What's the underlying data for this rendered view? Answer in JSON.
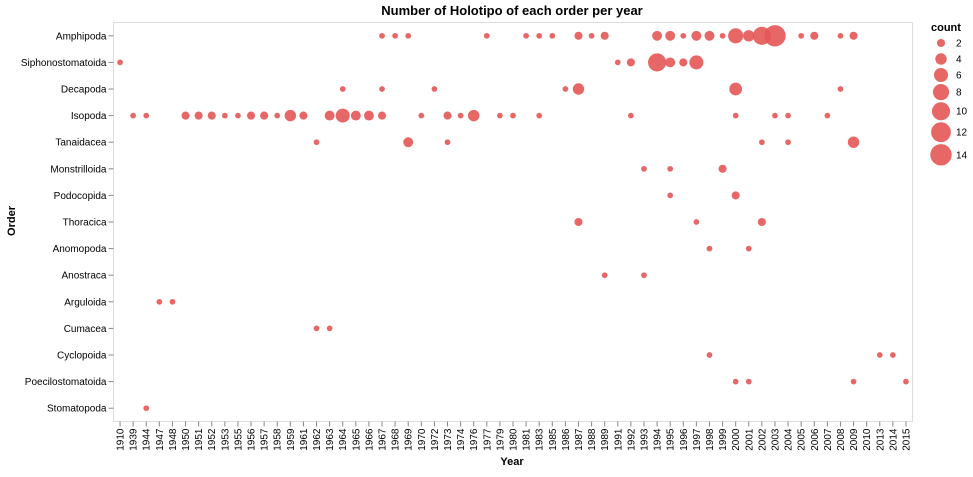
{
  "chart_data": {
    "type": "scatter",
    "title": "Number of Holotipo of each order per year",
    "xlabel": "Year",
    "ylabel": "Order",
    "x_categories": [
      "1910",
      "1939",
      "1944",
      "1947",
      "1948",
      "1950",
      "1951",
      "1952",
      "1953",
      "1955",
      "1956",
      "1957",
      "1958",
      "1959",
      "1961",
      "1962",
      "1963",
      "1964",
      "1965",
      "1966",
      "1967",
      "1968",
      "1969",
      "1970",
      "1972",
      "1973",
      "1974",
      "1976",
      "1977",
      "1979",
      "1980",
      "1981",
      "1983",
      "1985",
      "1986",
      "1987",
      "1988",
      "1989",
      "1991",
      "1992",
      "1993",
      "1994",
      "1995",
      "1996",
      "1997",
      "1998",
      "1999",
      "2000",
      "2001",
      "2002",
      "2003",
      "2004",
      "2005",
      "2006",
      "2007",
      "2008",
      "2009",
      "2010",
      "2013",
      "2014",
      "2015"
    ],
    "y_categories": [
      "Amphipoda",
      "Siphonostomatoida",
      "Decapoda",
      "Isopoda",
      "Tanaidacea",
      "Monstrilloida",
      "Podocopida",
      "Thoracica",
      "Anomopoda",
      "Anostraca",
      "Arguloida",
      "Cumacea",
      "Cyclopoida",
      "Poecilostomatoida",
      "Stomatopoda"
    ],
    "size_field": "count",
    "color": "#e45756",
    "grid": false,
    "legend": {
      "title": "count",
      "position": "right",
      "values": [
        2,
        4,
        6,
        8,
        10,
        12,
        14
      ]
    },
    "points": [
      {
        "x": "1967",
        "y": "Amphipoda",
        "count": 1
      },
      {
        "x": "1968",
        "y": "Amphipoda",
        "count": 1
      },
      {
        "x": "1969",
        "y": "Amphipoda",
        "count": 1
      },
      {
        "x": "1977",
        "y": "Amphipoda",
        "count": 1
      },
      {
        "x": "1981",
        "y": "Amphipoda",
        "count": 1
      },
      {
        "x": "1983",
        "y": "Amphipoda",
        "count": 1
      },
      {
        "x": "1985",
        "y": "Amphipoda",
        "count": 1
      },
      {
        "x": "1987",
        "y": "Amphipoda",
        "count": 2
      },
      {
        "x": "1988",
        "y": "Amphipoda",
        "count": 1
      },
      {
        "x": "1989",
        "y": "Amphipoda",
        "count": 2
      },
      {
        "x": "1994",
        "y": "Amphipoda",
        "count": 3
      },
      {
        "x": "1995",
        "y": "Amphipoda",
        "count": 3
      },
      {
        "x": "1996",
        "y": "Amphipoda",
        "count": 1
      },
      {
        "x": "1997",
        "y": "Amphipoda",
        "count": 3
      },
      {
        "x": "1998",
        "y": "Amphipoda",
        "count": 3
      },
      {
        "x": "1999",
        "y": "Amphipoda",
        "count": 1
      },
      {
        "x": "2000",
        "y": "Amphipoda",
        "count": 7
      },
      {
        "x": "2001",
        "y": "Amphipoda",
        "count": 4
      },
      {
        "x": "2002",
        "y": "Amphipoda",
        "count": 10
      },
      {
        "x": "2003",
        "y": "Amphipoda",
        "count": 14
      },
      {
        "x": "2005",
        "y": "Amphipoda",
        "count": 1
      },
      {
        "x": "2006",
        "y": "Amphipoda",
        "count": 2
      },
      {
        "x": "2008",
        "y": "Amphipoda",
        "count": 1
      },
      {
        "x": "2009",
        "y": "Amphipoda",
        "count": 2
      },
      {
        "x": "1910",
        "y": "Siphonostomatoida",
        "count": 1
      },
      {
        "x": "1991",
        "y": "Siphonostomatoida",
        "count": 1
      },
      {
        "x": "1992",
        "y": "Siphonostomatoida",
        "count": 2
      },
      {
        "x": "1994",
        "y": "Siphonostomatoida",
        "count": 10
      },
      {
        "x": "1995",
        "y": "Siphonostomatoida",
        "count": 3
      },
      {
        "x": "1996",
        "y": "Siphonostomatoida",
        "count": 2
      },
      {
        "x": "1997",
        "y": "Siphonostomatoida",
        "count": 6
      },
      {
        "x": "1964",
        "y": "Decapoda",
        "count": 1
      },
      {
        "x": "1967",
        "y": "Decapoda",
        "count": 1
      },
      {
        "x": "1972",
        "y": "Decapoda",
        "count": 1
      },
      {
        "x": "1986",
        "y": "Decapoda",
        "count": 1
      },
      {
        "x": "1987",
        "y": "Decapoda",
        "count": 4
      },
      {
        "x": "2000",
        "y": "Decapoda",
        "count": 5
      },
      {
        "x": "2008",
        "y": "Decapoda",
        "count": 1
      },
      {
        "x": "1939",
        "y": "Isopoda",
        "count": 1
      },
      {
        "x": "1944",
        "y": "Isopoda",
        "count": 1
      },
      {
        "x": "1950",
        "y": "Isopoda",
        "count": 2
      },
      {
        "x": "1951",
        "y": "Isopoda",
        "count": 2
      },
      {
        "x": "1952",
        "y": "Isopoda",
        "count": 2
      },
      {
        "x": "1953",
        "y": "Isopoda",
        "count": 1
      },
      {
        "x": "1955",
        "y": "Isopoda",
        "count": 1
      },
      {
        "x": "1956",
        "y": "Isopoda",
        "count": 2
      },
      {
        "x": "1957",
        "y": "Isopoda",
        "count": 2
      },
      {
        "x": "1958",
        "y": "Isopoda",
        "count": 1
      },
      {
        "x": "1959",
        "y": "Isopoda",
        "count": 4
      },
      {
        "x": "1961",
        "y": "Isopoda",
        "count": 2
      },
      {
        "x": "1963",
        "y": "Isopoda",
        "count": 3
      },
      {
        "x": "1964",
        "y": "Isopoda",
        "count": 6
      },
      {
        "x": "1965",
        "y": "Isopoda",
        "count": 3
      },
      {
        "x": "1966",
        "y": "Isopoda",
        "count": 3
      },
      {
        "x": "1967",
        "y": "Isopoda",
        "count": 2
      },
      {
        "x": "1970",
        "y": "Isopoda",
        "count": 1
      },
      {
        "x": "1973",
        "y": "Isopoda",
        "count": 2
      },
      {
        "x": "1974",
        "y": "Isopoda",
        "count": 1
      },
      {
        "x": "1976",
        "y": "Isopoda",
        "count": 4
      },
      {
        "x": "1979",
        "y": "Isopoda",
        "count": 1
      },
      {
        "x": "1980",
        "y": "Isopoda",
        "count": 1
      },
      {
        "x": "1983",
        "y": "Isopoda",
        "count": 1
      },
      {
        "x": "1992",
        "y": "Isopoda",
        "count": 1
      },
      {
        "x": "2000",
        "y": "Isopoda",
        "count": 1
      },
      {
        "x": "2003",
        "y": "Isopoda",
        "count": 1
      },
      {
        "x": "2004",
        "y": "Isopoda",
        "count": 1
      },
      {
        "x": "2007",
        "y": "Isopoda",
        "count": 1
      },
      {
        "x": "1962",
        "y": "Tanaidacea",
        "count": 1
      },
      {
        "x": "1969",
        "y": "Tanaidacea",
        "count": 3
      },
      {
        "x": "1973",
        "y": "Tanaidacea",
        "count": 1
      },
      {
        "x": "2002",
        "y": "Tanaidacea",
        "count": 1
      },
      {
        "x": "2004",
        "y": "Tanaidacea",
        "count": 1
      },
      {
        "x": "2009",
        "y": "Tanaidacea",
        "count": 4
      },
      {
        "x": "1993",
        "y": "Monstrilloida",
        "count": 1
      },
      {
        "x": "1995",
        "y": "Monstrilloida",
        "count": 1
      },
      {
        "x": "1999",
        "y": "Monstrilloida",
        "count": 2
      },
      {
        "x": "1995",
        "y": "Podocopida",
        "count": 1
      },
      {
        "x": "2000",
        "y": "Podocopida",
        "count": 2
      },
      {
        "x": "1987",
        "y": "Thoracica",
        "count": 2
      },
      {
        "x": "1997",
        "y": "Thoracica",
        "count": 1
      },
      {
        "x": "2002",
        "y": "Thoracica",
        "count": 2
      },
      {
        "x": "1998",
        "y": "Anomopoda",
        "count": 1
      },
      {
        "x": "2001",
        "y": "Anomopoda",
        "count": 1
      },
      {
        "x": "1989",
        "y": "Anostraca",
        "count": 1
      },
      {
        "x": "1993",
        "y": "Anostraca",
        "count": 1
      },
      {
        "x": "1947",
        "y": "Arguloida",
        "count": 1
      },
      {
        "x": "1948",
        "y": "Arguloida",
        "count": 1
      },
      {
        "x": "1962",
        "y": "Cumacea",
        "count": 1
      },
      {
        "x": "1963",
        "y": "Cumacea",
        "count": 1
      },
      {
        "x": "1998",
        "y": "Cyclopoida",
        "count": 1
      },
      {
        "x": "2013",
        "y": "Cyclopoida",
        "count": 1
      },
      {
        "x": "2014",
        "y": "Cyclopoida",
        "count": 1
      },
      {
        "x": "2000",
        "y": "Poecilostomatoida",
        "count": 1
      },
      {
        "x": "2001",
        "y": "Poecilostomatoida",
        "count": 1
      },
      {
        "x": "2009",
        "y": "Poecilostomatoida",
        "count": 1
      },
      {
        "x": "2015",
        "y": "Poecilostomatoida",
        "count": 1
      },
      {
        "x": "1944",
        "y": "Stomatopoda",
        "count": 1
      }
    ]
  }
}
